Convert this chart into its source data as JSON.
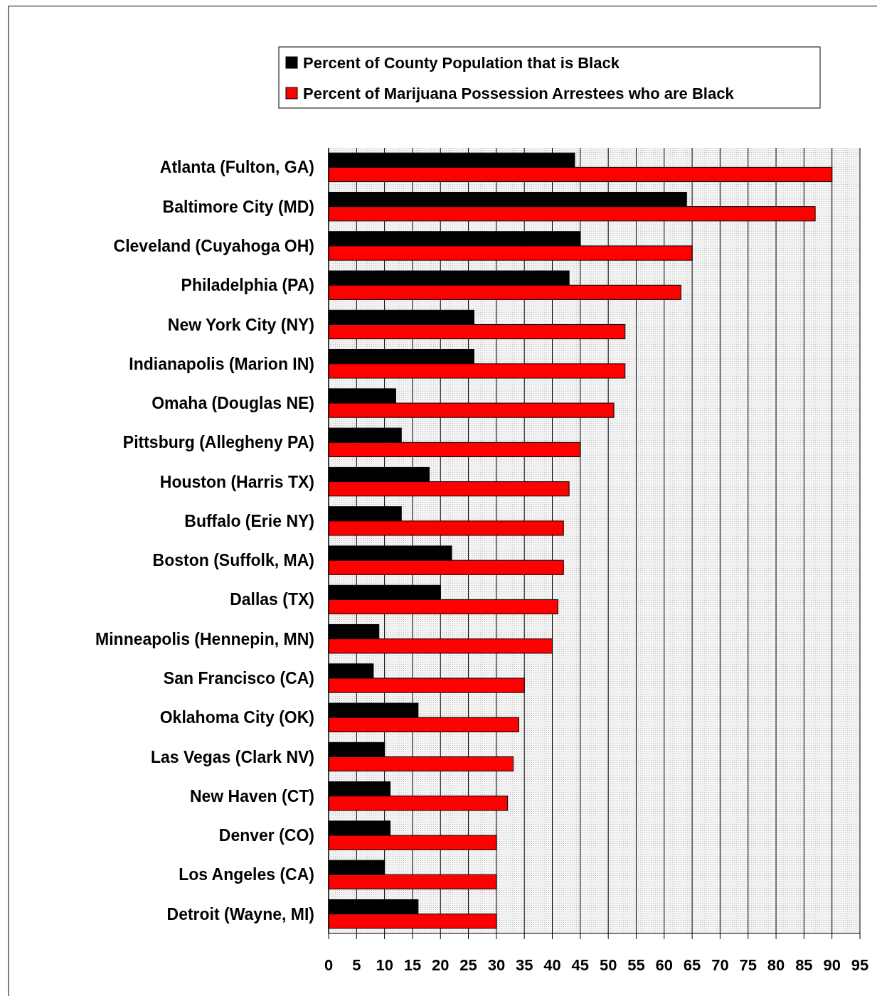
{
  "chart_data": {
    "type": "bar",
    "orientation": "horizontal",
    "categories": [
      "Atlanta (Fulton, GA)",
      "Baltimore City (MD)",
      "Cleveland (Cuyahoga OH)",
      "Philadelphia (PA)",
      "New York City (NY)",
      "Indianapolis (Marion IN)",
      "Omaha (Douglas NE)",
      "Pittsburg (Allegheny PA)",
      "Houston (Harris TX)",
      "Buffalo (Erie NY)",
      "Boston (Suffolk, MA)",
      "Dallas (TX)",
      "Minneapolis (Hennepin, MN)",
      "San Francisco (CA)",
      "Oklahoma City (OK)",
      "Las Vegas (Clark NV)",
      "New Haven (CT)",
      "Denver (CO)",
      "Los Angeles (CA)",
      "Detroit (Wayne, MI)"
    ],
    "series": [
      {
        "name": "Percent of County Population that is Black",
        "color": "#000000",
        "values": [
          44,
          64,
          45,
          43,
          26,
          26,
          12,
          13,
          18,
          13,
          22,
          20,
          9,
          8,
          16,
          10,
          11,
          11,
          10,
          16
        ]
      },
      {
        "name": "Percent of Marijuana Possession Arrestees who are Black",
        "color": "#ff0000",
        "values": [
          90,
          87,
          65,
          63,
          53,
          53,
          51,
          45,
          43,
          42,
          42,
          41,
          40,
          35,
          34,
          33,
          32,
          30,
          30,
          30
        ]
      }
    ],
    "xlim": [
      0,
      95
    ],
    "xticks": [
      0,
      5,
      10,
      15,
      20,
      25,
      30,
      35,
      40,
      45,
      50,
      55,
      60,
      65,
      70,
      75,
      80,
      85,
      90,
      95
    ],
    "grid": "x",
    "legend": "top"
  }
}
